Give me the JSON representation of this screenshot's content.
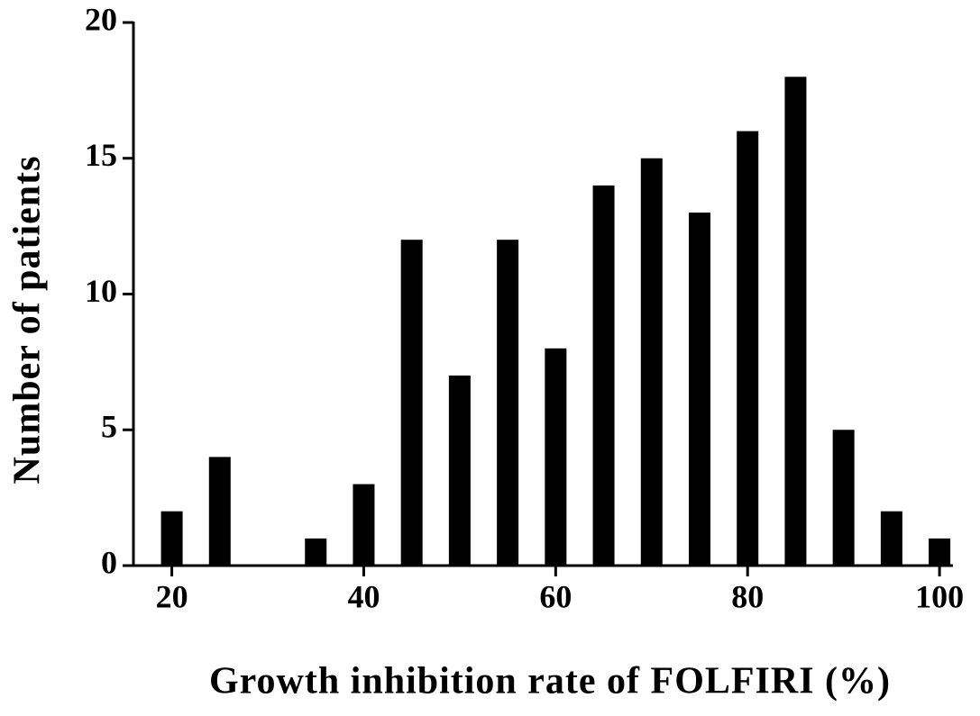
{
  "chart_data": {
    "type": "bar",
    "x_label": "Growth inhibition rate of FOLFIRI (%)",
    "y_label": "Number of patients",
    "x": [
      20,
      25,
      30,
      35,
      40,
      45,
      50,
      55,
      60,
      65,
      70,
      75,
      80,
      85,
      90,
      95,
      100
    ],
    "values": [
      2,
      4,
      0,
      1,
      3,
      12,
      7,
      12,
      8,
      14,
      15,
      13,
      16,
      18,
      5,
      2,
      1
    ],
    "color": "#000000",
    "xlim": [
      16,
      101.4
    ],
    "xticks": [
      20,
      40,
      60,
      80,
      100
    ],
    "ylim": [
      0,
      20
    ],
    "yticks": [
      0,
      5,
      10,
      15,
      20
    ]
  }
}
